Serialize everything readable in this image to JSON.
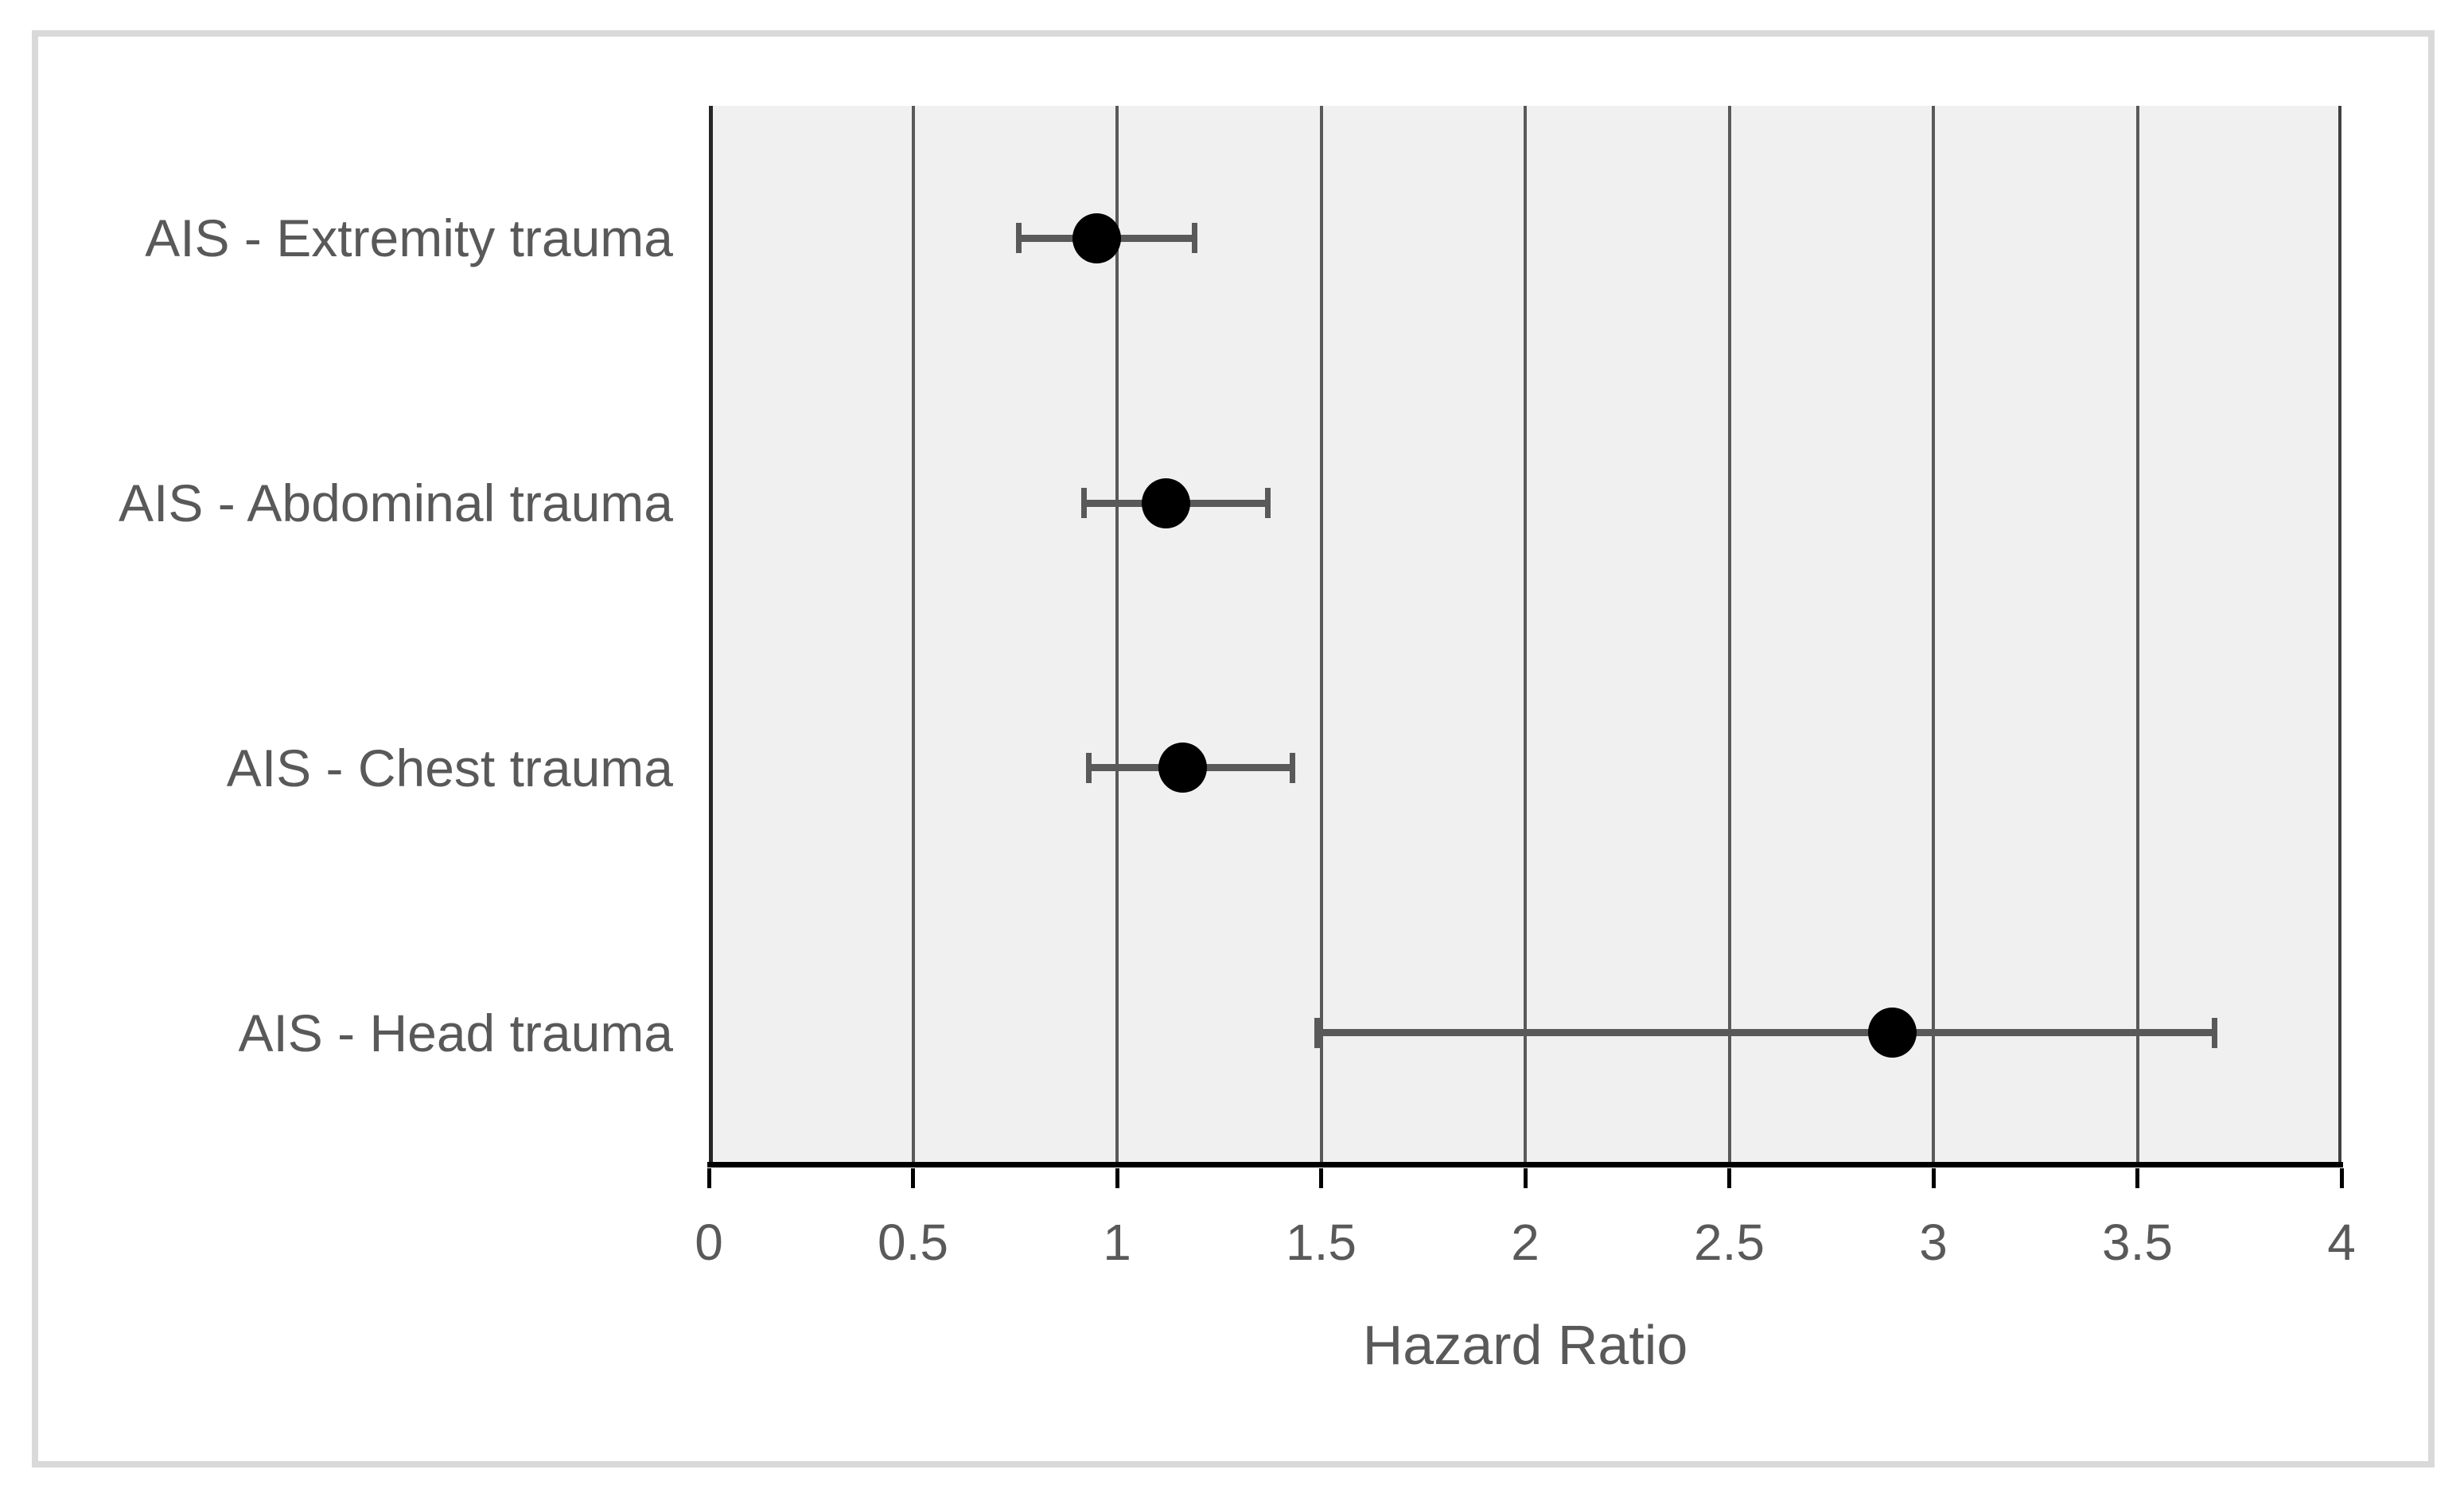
{
  "chart_data": {
    "type": "scatter",
    "subtype": "forest-plot-horizontal-errorbars",
    "title": "",
    "xlabel": "Hazard Ratio",
    "ylabel": "",
    "xlim": [
      0,
      4
    ],
    "grid": true,
    "gridlines_at": [
      0.5,
      1,
      1.5,
      2,
      2.5,
      3,
      3.5
    ],
    "x_ticks": [
      0,
      0.5,
      1,
      1.5,
      2,
      2.5,
      3,
      3.5,
      4
    ],
    "x_tick_labels": [
      "0",
      "0.5",
      "1",
      "1.5",
      "2",
      "2.5",
      "3",
      "3.5",
      "4"
    ],
    "categories": [
      "AIS - Extremity trauma",
      "AIS - Abdominal trauma",
      "AIS - Chest trauma",
      "AIS - Head trauma"
    ],
    "points": [
      {
        "label": "AIS - Extremity trauma",
        "hazard_ratio": 0.95,
        "ci_low": 0.76,
        "ci_high": 1.19
      },
      {
        "label": "AIS - Abdominal trauma",
        "hazard_ratio": 1.12,
        "ci_low": 0.92,
        "ci_high": 1.37
      },
      {
        "label": "AIS - Chest trauma",
        "hazard_ratio": 1.16,
        "ci_low": 0.93,
        "ci_high": 1.43
      },
      {
        "label": "AIS - Head trauma",
        "hazard_ratio": 2.9,
        "ci_low": 1.49,
        "ci_high": 3.69
      }
    ],
    "legend": null
  },
  "colors": {
    "marker": "#000000",
    "error_bar": "#595959",
    "gridline": "#595959",
    "axis_line": "#000000",
    "y_axis_line": "#262626",
    "plot_right_border": "#404040",
    "plot_bg": "#f0f0f0",
    "frame_border": "#d9d9d9",
    "text": "#595959",
    "page_bg": "#ffffff"
  }
}
